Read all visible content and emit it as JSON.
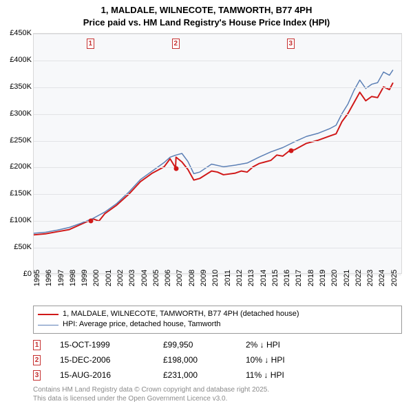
{
  "title_line1": "1, MALDALE, WILNECOTE, TAMWORTH, B77 4PH",
  "title_line2": "Price paid vs. HM Land Registry's House Price Index (HPI)",
  "chart": {
    "type": "line",
    "background_color": "#f7f8fa",
    "grid_color": "#e2e3e6",
    "x_min": 1995,
    "x_max": 2026,
    "x_ticks": [
      1995,
      1996,
      1997,
      1998,
      1999,
      2000,
      2001,
      2002,
      2003,
      2004,
      2005,
      2006,
      2007,
      2008,
      2009,
      2010,
      2011,
      2012,
      2013,
      2014,
      2015,
      2016,
      2017,
      2018,
      2019,
      2020,
      2021,
      2022,
      2023,
      2024,
      2025
    ],
    "y_min": 0,
    "y_max": 450000,
    "y_ticks": [
      0,
      50000,
      100000,
      150000,
      200000,
      250000,
      300000,
      350000,
      400000,
      450000
    ],
    "y_tick_labels": [
      "£0",
      "£50K",
      "£100K",
      "£150K",
      "£200K",
      "£250K",
      "£300K",
      "£350K",
      "£400K",
      "£450K"
    ],
    "series": [
      {
        "name": "1, MALDALE, WILNECOTE, TAMWORTH, B77 4PH (detached house)",
        "color": "#d01818",
        "line_width": 2,
        "data": [
          [
            1995,
            72000
          ],
          [
            1996,
            74000
          ],
          [
            1997,
            78000
          ],
          [
            1998,
            82000
          ],
          [
            1999,
            92000
          ],
          [
            1999.79,
            99950
          ],
          [
            2000,
            102000
          ],
          [
            2000.5,
            98000
          ],
          [
            2001,
            112000
          ],
          [
            2002,
            128000
          ],
          [
            2003,
            148000
          ],
          [
            2004,
            172000
          ],
          [
            2005,
            188000
          ],
          [
            2006,
            200000
          ],
          [
            2006.5,
            215000
          ],
          [
            2006.96,
            198000
          ],
          [
            2007,
            218000
          ],
          [
            2007.5,
            209000
          ],
          [
            2008,
            195000
          ],
          [
            2008.5,
            175000
          ],
          [
            2009,
            178000
          ],
          [
            2010,
            192000
          ],
          [
            2010.5,
            190000
          ],
          [
            2011,
            185000
          ],
          [
            2012,
            188000
          ],
          [
            2012.5,
            192000
          ],
          [
            2013,
            190000
          ],
          [
            2013.5,
            200000
          ],
          [
            2014,
            206000
          ],
          [
            2015,
            212000
          ],
          [
            2015.5,
            222000
          ],
          [
            2016,
            220000
          ],
          [
            2016.62,
            231000
          ],
          [
            2017,
            232000
          ],
          [
            2018,
            244000
          ],
          [
            2019,
            250000
          ],
          [
            2020,
            258000
          ],
          [
            2020.5,
            262000
          ],
          [
            2021,
            285000
          ],
          [
            2021.5,
            300000
          ],
          [
            2022,
            320000
          ],
          [
            2022.5,
            340000
          ],
          [
            2023,
            324000
          ],
          [
            2023.5,
            332000
          ],
          [
            2024,
            330000
          ],
          [
            2024.5,
            350000
          ],
          [
            2025,
            345000
          ],
          [
            2025.3,
            358000
          ]
        ]
      },
      {
        "name": "HPI: Average price, detached house, Tamworth",
        "color": "#5b7fb5",
        "line_width": 1.5,
        "data": [
          [
            1995,
            75000
          ],
          [
            1996,
            77000
          ],
          [
            1997,
            81000
          ],
          [
            1998,
            86000
          ],
          [
            1999,
            94000
          ],
          [
            2000,
            103000
          ],
          [
            2001,
            115000
          ],
          [
            2002,
            131000
          ],
          [
            2003,
            152000
          ],
          [
            2004,
            176000
          ],
          [
            2005,
            192000
          ],
          [
            2006,
            208000
          ],
          [
            2006.5,
            218000
          ],
          [
            2007,
            222000
          ],
          [
            2007.5,
            225000
          ],
          [
            2008,
            210000
          ],
          [
            2008.5,
            187000
          ],
          [
            2009,
            190000
          ],
          [
            2010,
            205000
          ],
          [
            2011,
            200000
          ],
          [
            2012,
            203000
          ],
          [
            2013,
            207000
          ],
          [
            2014,
            218000
          ],
          [
            2015,
            228000
          ],
          [
            2016,
            236000
          ],
          [
            2017,
            247000
          ],
          [
            2018,
            257000
          ],
          [
            2019,
            263000
          ],
          [
            2020,
            272000
          ],
          [
            2020.5,
            278000
          ],
          [
            2021,
            300000
          ],
          [
            2021.5,
            318000
          ],
          [
            2022,
            343000
          ],
          [
            2022.5,
            363000
          ],
          [
            2023,
            347000
          ],
          [
            2023.5,
            355000
          ],
          [
            2024,
            358000
          ],
          [
            2024.5,
            378000
          ],
          [
            2025,
            372000
          ],
          [
            2025.3,
            382000
          ]
        ]
      }
    ],
    "sale_points": [
      {
        "x": 1999.79,
        "y": 99950,
        "color": "#d01818"
      },
      {
        "x": 2006.96,
        "y": 198000,
        "color": "#d01818"
      },
      {
        "x": 2016.62,
        "y": 231000,
        "color": "#d01818"
      }
    ],
    "markers": [
      {
        "label": "1",
        "x": 1999.79
      },
      {
        "label": "2",
        "x": 2006.96
      },
      {
        "label": "3",
        "x": 2016.62
      }
    ]
  },
  "legend": {
    "items": [
      {
        "color": "#d01818",
        "width": 2,
        "text": "1, MALDALE, WILNECOTE, TAMWORTH, B77 4PH (detached house)"
      },
      {
        "color": "#5b7fb5",
        "width": 1.5,
        "text": "HPI: Average price, detached house, Tamworth"
      }
    ]
  },
  "sales": [
    {
      "idx": "1",
      "date": "15-OCT-1999",
      "price": "£99,950",
      "diff": "2% ↓ HPI"
    },
    {
      "idx": "2",
      "date": "15-DEC-2006",
      "price": "£198,000",
      "diff": "10% ↓ HPI"
    },
    {
      "idx": "3",
      "date": "15-AUG-2016",
      "price": "£231,000",
      "diff": "11% ↓ HPI"
    }
  ],
  "footer": {
    "line1": "Contains HM Land Registry data © Crown copyright and database right 2025.",
    "line2": "This data is licensed under the Open Government Licence v3.0."
  }
}
